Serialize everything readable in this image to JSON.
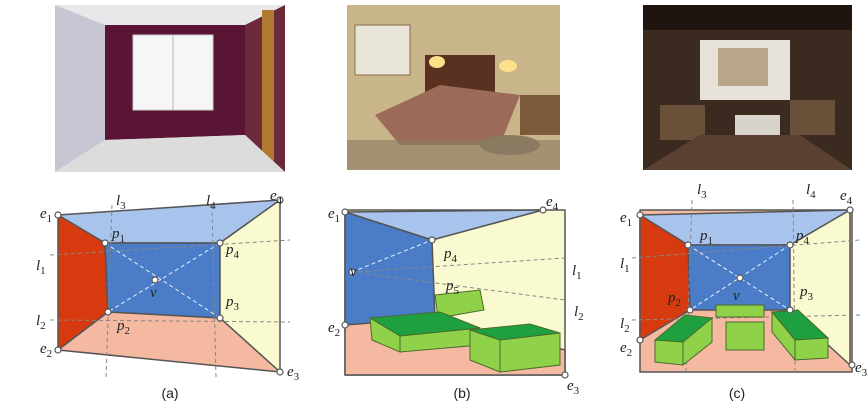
{
  "panels": [
    {
      "caption": "(a)",
      "labels": [
        {
          "letter": "e",
          "index": "1"
        },
        {
          "letter": "e",
          "index": "4"
        },
        {
          "letter": "e",
          "index": "2"
        },
        {
          "letter": "e",
          "index": "3"
        },
        {
          "letter": "l",
          "index": "3"
        },
        {
          "letter": "l",
          "index": "4"
        },
        {
          "letter": "l",
          "index": "1"
        },
        {
          "letter": "l",
          "index": "2"
        },
        {
          "letter": "p",
          "index": "1"
        },
        {
          "letter": "p",
          "index": "4"
        },
        {
          "letter": "p",
          "index": "2"
        },
        {
          "letter": "p",
          "index": "3"
        },
        {
          "letter": "v",
          "index": ""
        }
      ]
    },
    {
      "caption": "(b)",
      "labels": [
        {
          "letter": "e",
          "index": "1"
        },
        {
          "letter": "e",
          "index": "4"
        },
        {
          "letter": "e",
          "index": "2"
        },
        {
          "letter": "e",
          "index": "3"
        },
        {
          "letter": "p",
          "index": "4"
        },
        {
          "letter": "p",
          "index": "5"
        },
        {
          "letter": "v",
          "index": ""
        },
        {
          "letter": "l",
          "index": "1"
        },
        {
          "letter": "l",
          "index": "2"
        }
      ]
    },
    {
      "caption": "(c)",
      "labels": [
        {
          "letter": "l",
          "index": "3"
        },
        {
          "letter": "l",
          "index": "4"
        },
        {
          "letter": "e",
          "index": "1"
        },
        {
          "letter": "e",
          "index": "4"
        },
        {
          "letter": "l",
          "index": "1"
        },
        {
          "letter": "l",
          "index": "2"
        },
        {
          "letter": "e",
          "index": "2"
        },
        {
          "letter": "e",
          "index": "3"
        },
        {
          "letter": "p",
          "index": "1"
        },
        {
          "letter": "p",
          "index": "4"
        },
        {
          "letter": "p",
          "index": "2"
        },
        {
          "letter": "p",
          "index": "3"
        },
        {
          "letter": "v",
          "index": ""
        }
      ]
    }
  ]
}
